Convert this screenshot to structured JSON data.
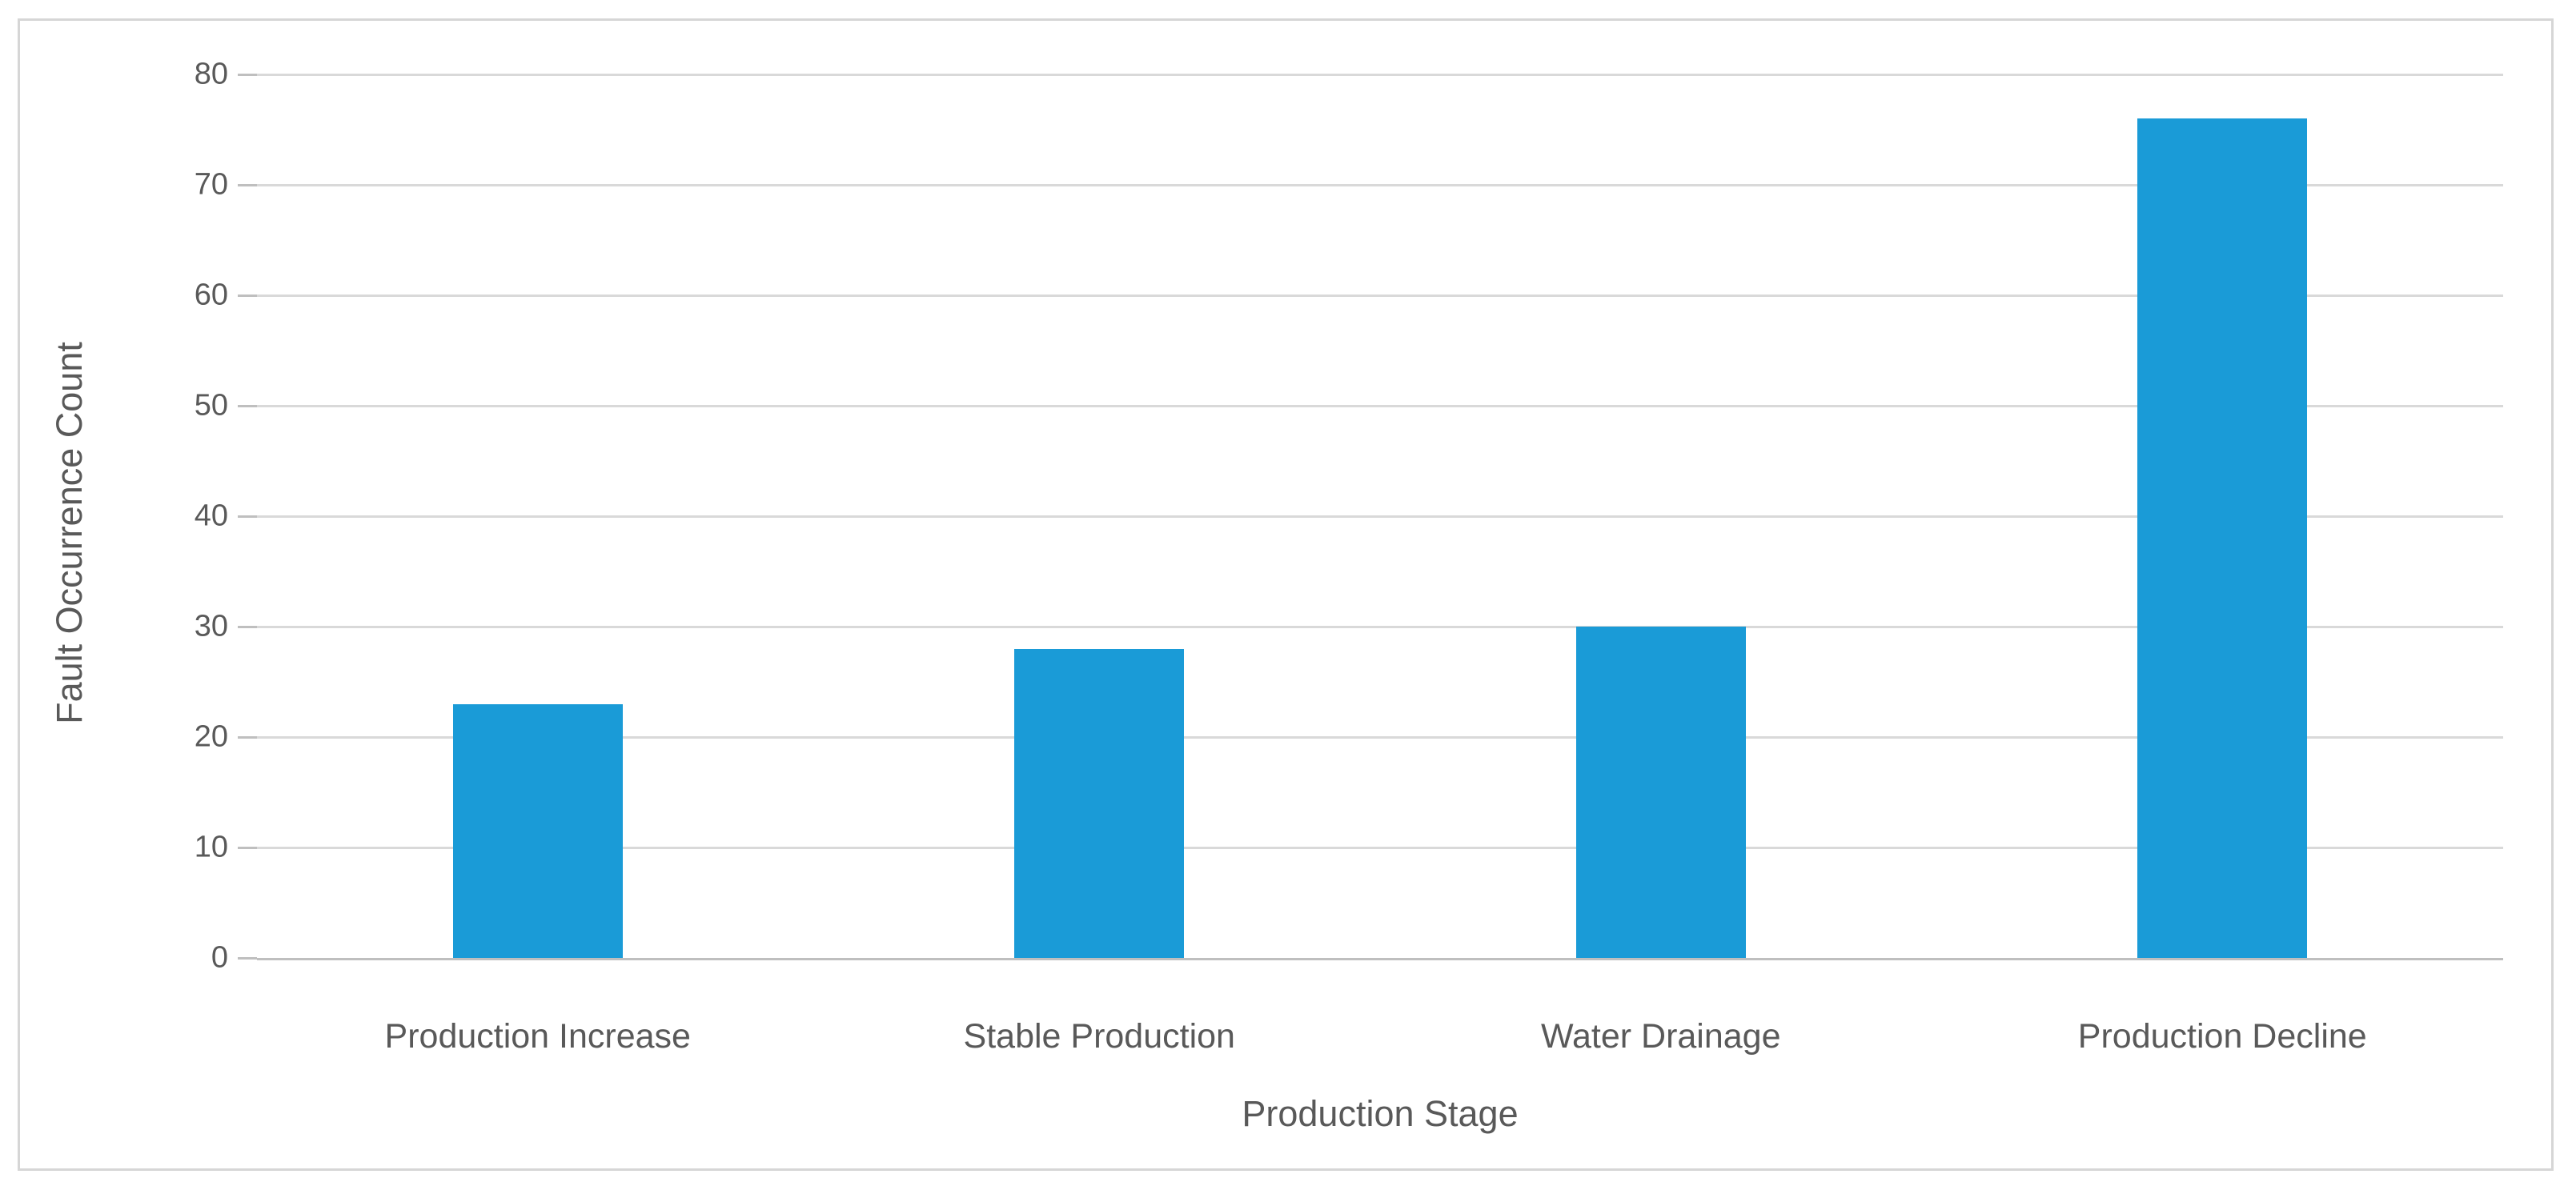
{
  "chart_data": {
    "type": "bar",
    "title": "",
    "xlabel": "Production Stage",
    "ylabel": "Fault Occurrence Count",
    "categories": [
      "Production Increase",
      "Stable Production",
      "Water Drainage",
      "Production Decline"
    ],
    "values": [
      23,
      28,
      30,
      76
    ],
    "ylim": [
      0,
      80
    ],
    "yticks": [
      0,
      10,
      20,
      30,
      40,
      50,
      60,
      70,
      80
    ],
    "grid": "horizontal",
    "legend": "none",
    "bar_color": "#1A9BD7"
  },
  "colors": {
    "bar": "#1A9BD7",
    "text": "#595959",
    "gridline": "#D9D9D9",
    "axis_line": "#BFBFBF",
    "frame_border": "#D6D6D6",
    "background": "#FFFFFF"
  }
}
